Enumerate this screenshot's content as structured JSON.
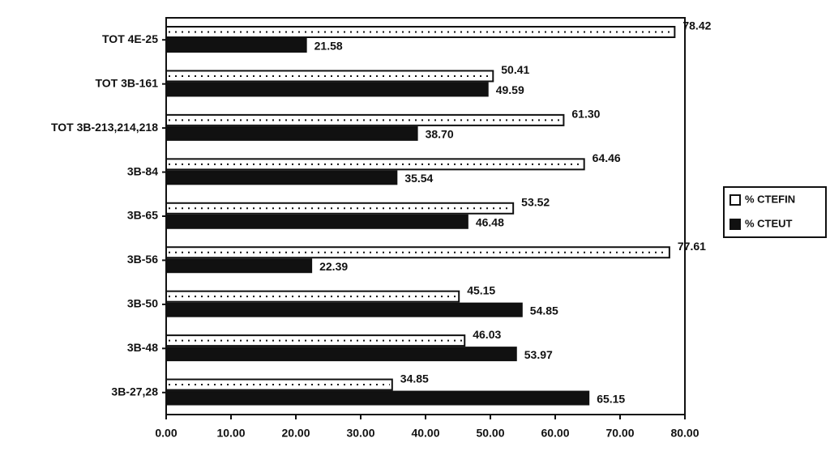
{
  "chart_data": {
    "type": "barh",
    "categories": [
      "TOT 4E-25",
      "TOT 3B-161",
      "TOT 3B-213,214,218",
      "3B-84",
      "3B-65",
      "3B-56",
      "3B-50",
      "3B-48",
      "3B-27,28"
    ],
    "series": [
      {
        "name": "% CTEFIN",
        "color": "#ffffff",
        "values": [
          78.42,
          50.41,
          61.3,
          64.46,
          53.52,
          77.61,
          45.15,
          46.03,
          34.85
        ],
        "value_labels": [
          "78.42",
          "50.41",
          "61.30",
          "64.46",
          "53.52",
          "77.61",
          "45.15",
          "46.03",
          "34.85"
        ]
      },
      {
        "name": "% CTEUT",
        "color": "#111111",
        "values": [
          21.58,
          49.59,
          38.7,
          35.54,
          46.48,
          22.39,
          54.85,
          53.97,
          65.15
        ],
        "value_labels": [
          "21.58",
          "49.59",
          "38.70",
          "35.54",
          "46.48",
          "22.39",
          "54.85",
          "53.97",
          "65.15"
        ]
      }
    ],
    "xlim": [
      0,
      80
    ],
    "xticks": [
      {
        "value": 0,
        "label": "0.00"
      },
      {
        "value": 10,
        "label": "10.00"
      },
      {
        "value": 20,
        "label": "20.00"
      },
      {
        "value": 30,
        "label": "30.00"
      },
      {
        "value": 40,
        "label": "40.00"
      },
      {
        "value": 50,
        "label": "50.00"
      },
      {
        "value": 60,
        "label": "60.00"
      },
      {
        "value": 70,
        "label": "70.00"
      },
      {
        "value": 80,
        "label": "80.00"
      }
    ],
    "legend": "right"
  }
}
